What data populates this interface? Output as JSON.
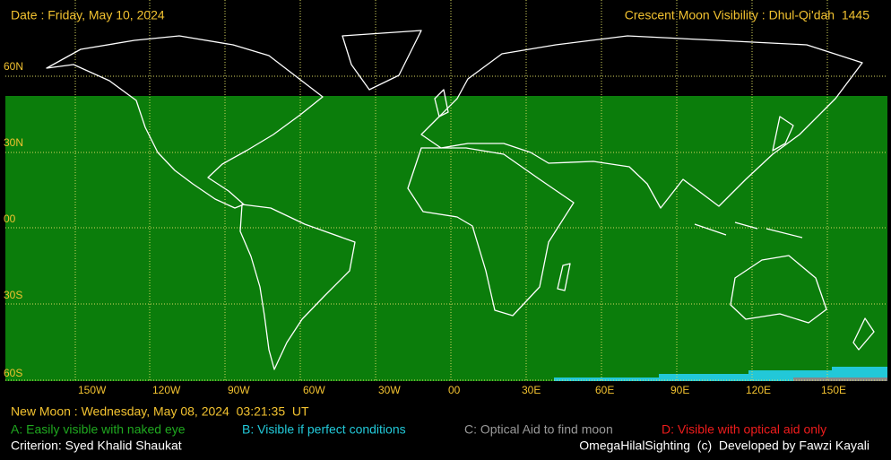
{
  "header": {
    "date": "Date : Friday, May 10, 2024",
    "title": "Crescent Moon Visibility : Dhul-Qi'dah  1445"
  },
  "map": {
    "lat_labels": [
      "60N",
      "30N",
      "00",
      "30S",
      "60S"
    ],
    "lon_labels": [
      "150W",
      "120W",
      "90W",
      "60W",
      "30W",
      "00",
      "30E",
      "60E",
      "90E",
      "120E",
      "150E"
    ]
  },
  "footer": {
    "new_moon": "New Moon : Wednesday, May 08, 2024  03:21:35  UT",
    "legend": [
      "A: Easily visible with naked eye",
      "B: Visible if perfect conditions",
      "C: Optical Aid to find moon",
      "D: Visible with optical aid only"
    ],
    "criterion": "Criterion: Syed Khalid Shaukat",
    "credits": "OmegaHilalSighting  (c)  Developed by Fawzi Kayali"
  }
}
